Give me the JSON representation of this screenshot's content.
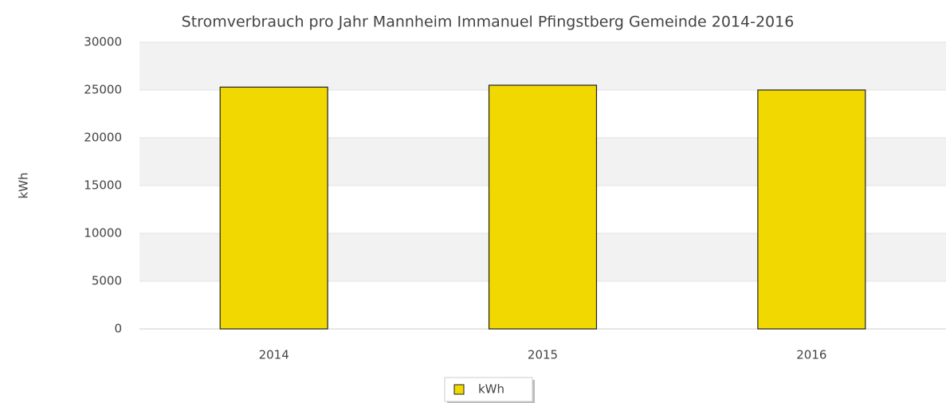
{
  "chart_data": {
    "type": "bar",
    "title": "Stromverbrauch pro Jahr Mannheim Immanuel Pfingstberg Gemeinde 2014-2016",
    "y_label": "kWh",
    "categories": [
      "2014",
      "2015",
      "2016"
    ],
    "series": [
      {
        "name": "kWh",
        "color": "#f0d800",
        "values": [
          25300,
          25500,
          25000
        ]
      }
    ],
    "ylim": [
      0,
      30000
    ],
    "yticks": [
      0,
      5000,
      10000,
      15000,
      20000,
      25000,
      30000
    ],
    "grid": true,
    "legend": "bottom"
  }
}
